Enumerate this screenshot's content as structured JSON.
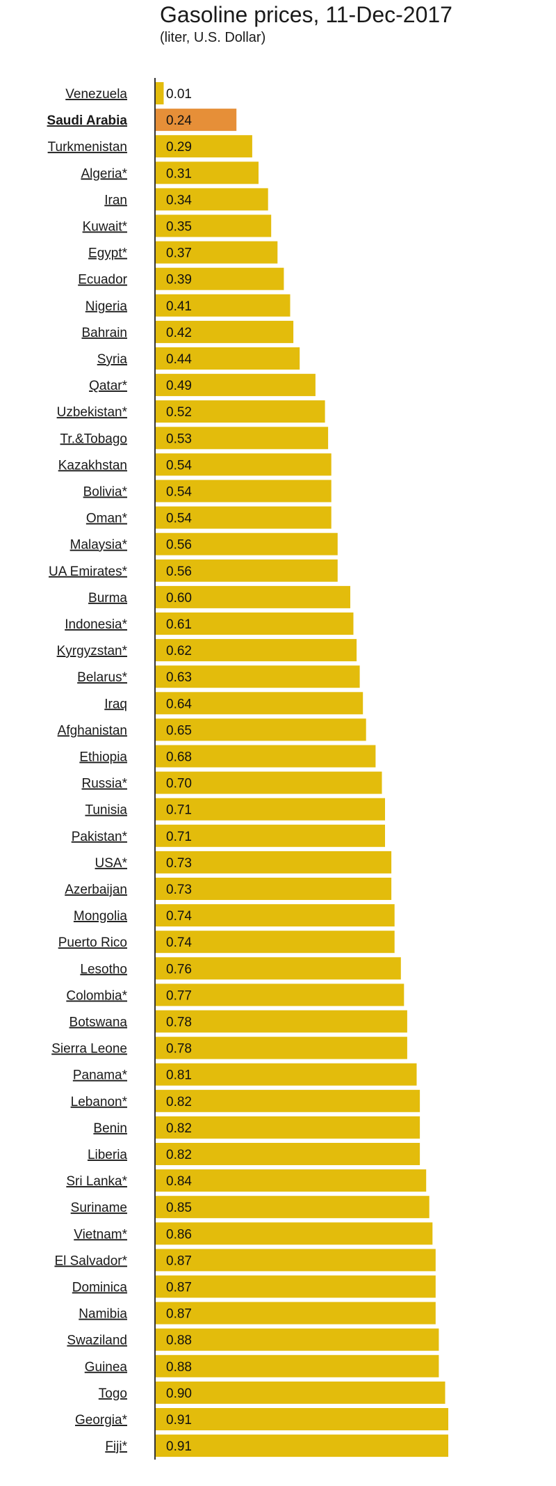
{
  "chart_data": {
    "type": "bar",
    "orientation": "horizontal",
    "title": "Gasoline prices, 11-Dec-2017",
    "subtitle": "(liter, U.S. Dollar)",
    "grid": false,
    "xlim": [
      0,
      0.91
    ],
    "colors": {
      "bar": "#e3bc0c",
      "highlight": "#e68f38",
      "axis": "#333333"
    },
    "highlight": "Saudi Arabia",
    "categories": [
      "Venezuela",
      "Saudi Arabia",
      "Turkmenistan",
      "Algeria*",
      "Iran",
      "Kuwait*",
      "Egypt*",
      "Ecuador",
      "Nigeria",
      "Bahrain",
      "Syria",
      "Qatar*",
      "Uzbekistan*",
      "Tr.&Tobago",
      "Kazakhstan",
      "Bolivia*",
      "Oman*",
      "Malaysia*",
      "UA Emirates*",
      "Burma",
      "Indonesia*",
      "Kyrgyzstan*",
      "Belarus*",
      "Iraq",
      "Afghanistan",
      "Ethiopia",
      "Russia*",
      "Tunisia",
      "Pakistan*",
      "USA*",
      "Azerbaijan",
      "Mongolia",
      "Puerto Rico",
      "Lesotho",
      "Colombia*",
      "Botswana",
      "Sierra Leone",
      "Panama*",
      "Lebanon*",
      "Benin",
      "Liberia",
      "Sri Lanka*",
      "Suriname",
      "Vietnam*",
      "El Salvador*",
      "Dominica",
      "Namibia",
      "Swaziland",
      "Guinea",
      "Togo",
      "Georgia*",
      "Fiji*"
    ],
    "values": [
      0.01,
      0.24,
      0.29,
      0.31,
      0.34,
      0.35,
      0.37,
      0.39,
      0.41,
      0.42,
      0.44,
      0.49,
      0.52,
      0.53,
      0.54,
      0.54,
      0.54,
      0.56,
      0.56,
      0.6,
      0.61,
      0.62,
      0.63,
      0.64,
      0.65,
      0.68,
      0.7,
      0.71,
      0.71,
      0.73,
      0.73,
      0.74,
      0.74,
      0.76,
      0.77,
      0.78,
      0.78,
      0.81,
      0.82,
      0.82,
      0.82,
      0.84,
      0.85,
      0.86,
      0.87,
      0.87,
      0.87,
      0.88,
      0.88,
      0.9,
      0.91,
      0.91
    ],
    "value_labels": [
      "0.01",
      "0.24",
      "0.29",
      "0.31",
      "0.34",
      "0.35",
      "0.37",
      "0.39",
      "0.41",
      "0.42",
      "0.44",
      "0.49",
      "0.52",
      "0.53",
      "0.54",
      "0.54",
      "0.54",
      "0.56",
      "0.56",
      "0.60",
      "0.61",
      "0.62",
      "0.63",
      "0.64",
      "0.65",
      "0.68",
      "0.70",
      "0.71",
      "0.71",
      "0.73",
      "0.73",
      "0.74",
      "0.74",
      "0.76",
      "0.77",
      "0.78",
      "0.78",
      "0.81",
      "0.82",
      "0.82",
      "0.82",
      "0.84",
      "0.85",
      "0.86",
      "0.87",
      "0.87",
      "0.87",
      "0.88",
      "0.88",
      "0.90",
      "0.91",
      "0.91"
    ]
  }
}
